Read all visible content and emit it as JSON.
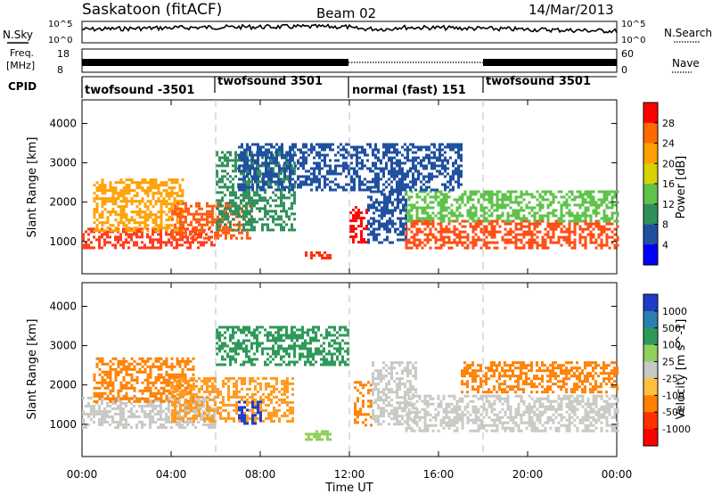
{
  "header": {
    "station": "Saskatoon (fitACF)",
    "beam": "Beam 02",
    "date": "14/Mar/2013"
  },
  "strips": {
    "nsky_label": "N.Sky",
    "nsky_ticks": [
      "10^5",
      "10^0"
    ],
    "nsearch_label": "N.Search",
    "freq_label_line1": "Freq.",
    "freq_label_line2": "[MHz]",
    "freq_ticks": [
      "18",
      "8"
    ],
    "nave_label": "Nave",
    "nave_ticks": [
      "60",
      "0"
    ],
    "cpid_label": "CPID"
  },
  "cpid_segments": [
    {
      "name": "twofsound -3501",
      "start_h": 0,
      "end_h": 6
    },
    {
      "name": "twofsound 3501",
      "start_h": 6,
      "end_h": 12
    },
    {
      "name": "normal (fast) 151",
      "start_h": 12,
      "end_h": 18
    },
    {
      "name": "twofsound 3501",
      "start_h": 18,
      "end_h": 24
    }
  ],
  "chart_data": [
    {
      "type": "heatmap",
      "quantity": "power",
      "ylabel": "Slant Range [km]",
      "yticks": [
        1000,
        2000,
        3000,
        4000
      ],
      "ylim": [
        180,
        4600
      ],
      "xlim_hours": [
        0,
        24
      ],
      "colorbar_label": "Power [dB]",
      "colorbar_ticks": [
        "28",
        "24",
        "20",
        "16",
        "12",
        "8",
        "4"
      ],
      "colorbar_colors": [
        "#ff0000",
        "#ff6a00",
        "#ffa000",
        "#d7d200",
        "#5fc24a",
        "#2f8f5a",
        "#2050a0",
        "#0000ff"
      ],
      "bands": [
        {
          "t0": 0.0,
          "t1": 6.0,
          "r0": 850,
          "r1": 1350,
          "color": "#ff3a1a"
        },
        {
          "t0": 0.5,
          "t1": 4.5,
          "r0": 1300,
          "r1": 2600,
          "color": "#ffa000"
        },
        {
          "t0": 4.0,
          "t1": 7.5,
          "r0": 1100,
          "r1": 2000,
          "color": "#ff5a10"
        },
        {
          "t0": 6.0,
          "t1": 9.5,
          "r0": 1300,
          "r1": 3300,
          "color": "#2f8f5a"
        },
        {
          "t0": 10.0,
          "t1": 11.2,
          "r0": 550,
          "r1": 750,
          "color": "#ff2a00"
        },
        {
          "t0": 12.0,
          "t1": 12.8,
          "r0": 950,
          "r1": 1900,
          "color": "#ff0000"
        },
        {
          "t0": 12.8,
          "t1": 14.5,
          "r0": 1000,
          "r1": 2300,
          "color": "#2050a0"
        },
        {
          "t0": 14.5,
          "t1": 24.0,
          "r0": 850,
          "r1": 1550,
          "color": "#ff4a10"
        },
        {
          "t0": 14.5,
          "t1": 24.0,
          "r0": 1500,
          "r1": 2300,
          "color": "#5fc24a"
        },
        {
          "t0": 7.0,
          "t1": 17.0,
          "r0": 2300,
          "r1": 3500,
          "color": "#2050a0"
        }
      ]
    },
    {
      "type": "heatmap",
      "quantity": "velocity",
      "ylabel": "Slant Range [km]",
      "yticks": [
        1000,
        2000,
        3000,
        4000
      ],
      "ylim": [
        180,
        4600
      ],
      "xlim_hours": [
        0,
        24
      ],
      "xticks": [
        "00:00",
        "04:00",
        "08:00",
        "12:00",
        "16:00",
        "20:00",
        "00:00"
      ],
      "xlabel": "Time UT",
      "colorbar_label": "Velocity [m s^-1]",
      "colorbar_ticks": [
        "1000",
        "500",
        "100",
        "25",
        "-25",
        "-100",
        "-500",
        "-1000"
      ],
      "colorbar_colors": [
        "#1e3cc8",
        "#2a7fb0",
        "#2e9a5a",
        "#8fd05a",
        "#c8c8c4",
        "#ffc040",
        "#ff8000",
        "#ff3000",
        "#ff0000"
      ],
      "bands": [
        {
          "t0": 0.0,
          "t1": 6.0,
          "r0": 900,
          "r1": 1700,
          "color": "#c8c8c4"
        },
        {
          "t0": 0.5,
          "t1": 5.0,
          "r0": 1600,
          "r1": 2700,
          "color": "#ff8000"
        },
        {
          "t0": 4.0,
          "t1": 9.5,
          "r0": 1100,
          "r1": 2200,
          "color": "#ff9a20"
        },
        {
          "t0": 7.0,
          "t1": 8.0,
          "r0": 1000,
          "r1": 1600,
          "color": "#1e3cc8"
        },
        {
          "t0": 10.0,
          "t1": 11.2,
          "r0": 600,
          "r1": 850,
          "color": "#8fd05a"
        },
        {
          "t0": 12.2,
          "t1": 13.0,
          "r0": 1000,
          "r1": 2100,
          "color": "#ff8000"
        },
        {
          "t0": 13.0,
          "t1": 15.0,
          "r0": 1000,
          "r1": 2600,
          "color": "#c8c8c4"
        },
        {
          "t0": 14.5,
          "t1": 24.0,
          "r0": 850,
          "r1": 1750,
          "color": "#c8c8c4"
        },
        {
          "t0": 17.0,
          "t1": 24.0,
          "r0": 1800,
          "r1": 2600,
          "color": "#ff8000"
        },
        {
          "t0": 6.0,
          "t1": 12.0,
          "r0": 2500,
          "r1": 3500,
          "color": "#2e9a5a"
        }
      ]
    }
  ]
}
